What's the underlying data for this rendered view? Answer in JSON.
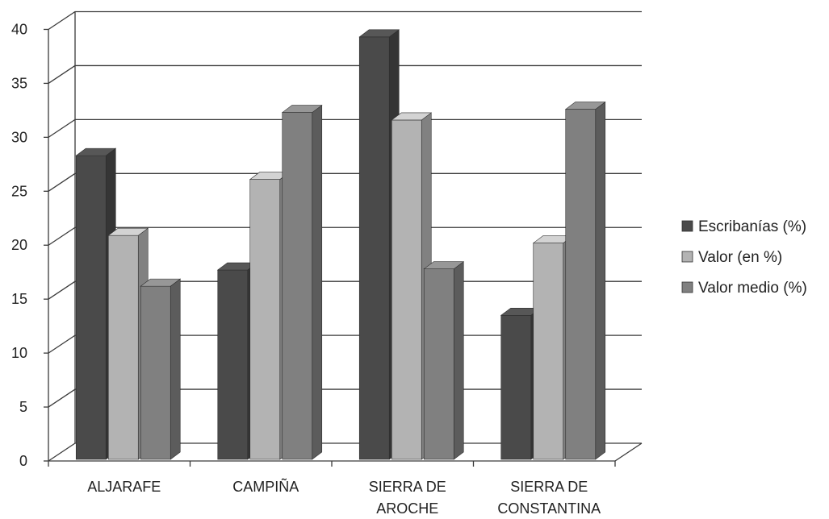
{
  "chart_data": {
    "type": "bar",
    "title": "",
    "xlabel": "",
    "ylabel": "",
    "ylim": [
      0,
      40
    ],
    "yticks": [
      0,
      5,
      10,
      15,
      20,
      25,
      30,
      35,
      40
    ],
    "grid": true,
    "legend_position": "right",
    "categories": [
      [
        "ALJARAFE"
      ],
      [
        "CAMPIÑA"
      ],
      [
        "SIERRA DE",
        "AROCHE"
      ],
      [
        "SIERRA DE",
        "CONSTANTINA"
      ]
    ],
    "series": [
      {
        "name": "Escribanías (%)",
        "color": "#4a4a4a",
        "values": [
          28.3,
          17.7,
          39.3,
          13.5
        ]
      },
      {
        "name": "Valor (en %)",
        "color": "#b3b3b3",
        "values": [
          20.9,
          26.1,
          31.6,
          20.2
        ]
      },
      {
        "name": "Valor medio (%)",
        "color": "#808080",
        "values": [
          16.2,
          32.3,
          17.8,
          32.6
        ]
      }
    ]
  }
}
